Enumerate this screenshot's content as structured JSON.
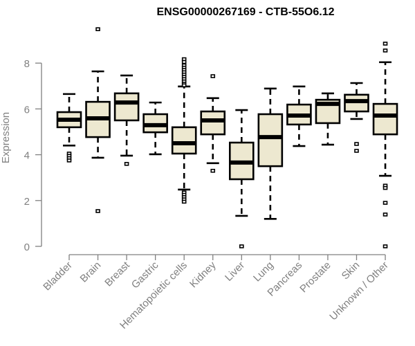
{
  "chart_data": {
    "type": "boxplot",
    "title": "ENSG00000267169 - CTB-55O6.12",
    "xlabel": "",
    "ylabel": "Expression",
    "ylim": [
      0,
      9.6
    ],
    "yticks": [
      0,
      2,
      4,
      6,
      8
    ],
    "grid": false,
    "legend": "none",
    "box_fill": "#EDE8D0",
    "box_stroke": "#000000",
    "categories": [
      "Bladder",
      "Brain",
      "Breast",
      "Gastric",
      "Hematopoietic cells",
      "Kidney",
      "Liver",
      "Lung",
      "Pancreas",
      "Prostate",
      "Skin",
      "Unknown / Other"
    ],
    "boxes": [
      {
        "name": "Bladder",
        "whisker_low": 4.4,
        "q1": 5.2,
        "median": 5.53,
        "q3": 5.86,
        "whisker_high": 6.65,
        "outliers": [
          4.05,
          3.95,
          3.85,
          3.75
        ]
      },
      {
        "name": "Brain",
        "whisker_low": 3.87,
        "q1": 4.77,
        "median": 5.59,
        "q3": 6.31,
        "whisker_high": 7.64,
        "outliers": [
          9.48,
          1.54
        ]
      },
      {
        "name": "Breast",
        "whisker_low": 3.96,
        "q1": 5.5,
        "median": 6.28,
        "q3": 6.68,
        "whisker_high": 7.46,
        "outliers": [
          3.6
        ]
      },
      {
        "name": "Gastric",
        "whisker_low": 4.02,
        "q1": 4.98,
        "median": 5.29,
        "q3": 5.77,
        "whisker_high": 6.28,
        "outliers": []
      },
      {
        "name": "Hematopoietic cells",
        "whisker_low": 2.48,
        "q1": 4.05,
        "median": 4.5,
        "q3": 5.2,
        "whisker_high": 6.98,
        "outliers": [
          8.17,
          8.05,
          7.9,
          7.8,
          7.7,
          7.6,
          7.5,
          7.4,
          7.3,
          7.2,
          7.1,
          7.03,
          2.35,
          2.25,
          2.15,
          2.05,
          1.95
        ]
      },
      {
        "name": "Kidney",
        "whisker_low": 3.63,
        "q1": 4.89,
        "median": 5.5,
        "q3": 5.89,
        "whisker_high": 6.47,
        "outliers": [
          7.43,
          3.3
        ]
      },
      {
        "name": "Liver",
        "whisker_low": 1.33,
        "q1": 2.93,
        "median": 3.66,
        "q3": 4.53,
        "whisker_high": 5.95,
        "outliers": [
          0.0
        ]
      },
      {
        "name": "Lung",
        "whisker_low": 1.2,
        "q1": 3.5,
        "median": 4.77,
        "q3": 5.77,
        "whisker_high": 6.89,
        "outliers": []
      },
      {
        "name": "Pancreas",
        "whisker_low": 4.38,
        "q1": 5.32,
        "median": 5.71,
        "q3": 6.19,
        "whisker_high": 6.98,
        "outliers": []
      },
      {
        "name": "Prostate",
        "whisker_low": 4.44,
        "q1": 5.38,
        "median": 6.22,
        "q3": 6.4,
        "whisker_high": 6.68,
        "outliers": []
      },
      {
        "name": "Skin",
        "whisker_low": 5.56,
        "q1": 5.89,
        "median": 6.34,
        "q3": 6.62,
        "whisker_high": 7.13,
        "outliers": [
          4.47,
          4.17
        ]
      },
      {
        "name": "Unknown / Other",
        "whisker_low": 3.08,
        "q1": 4.89,
        "median": 5.71,
        "q3": 6.22,
        "whisker_high": 8.04,
        "outliers": [
          8.85,
          8.55,
          2.65,
          2.55,
          1.9,
          1.39,
          0.0
        ]
      }
    ]
  }
}
